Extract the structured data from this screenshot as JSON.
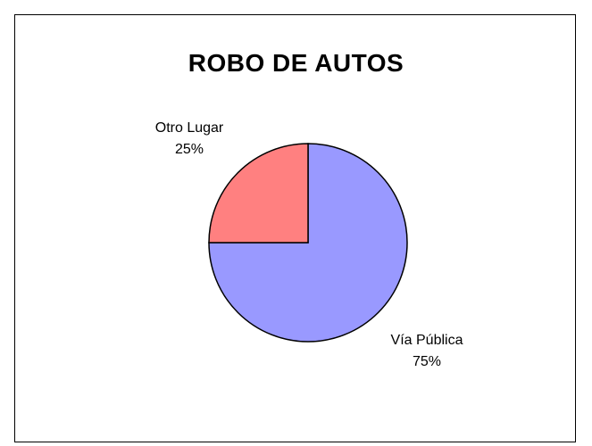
{
  "chart_data": {
    "type": "pie",
    "title": "ROBO DE AUTOS",
    "slices": [
      {
        "label": "Vía Pública",
        "percent_label": "75%",
        "value": 75,
        "color": "#9999ff"
      },
      {
        "label": "Otro Lugar",
        "percent_label": "25%",
        "value": 25,
        "color": "#ff8080"
      }
    ],
    "start_angle_deg": 0,
    "direction": "clockwise",
    "legend": "none",
    "border_color": "#000000"
  }
}
